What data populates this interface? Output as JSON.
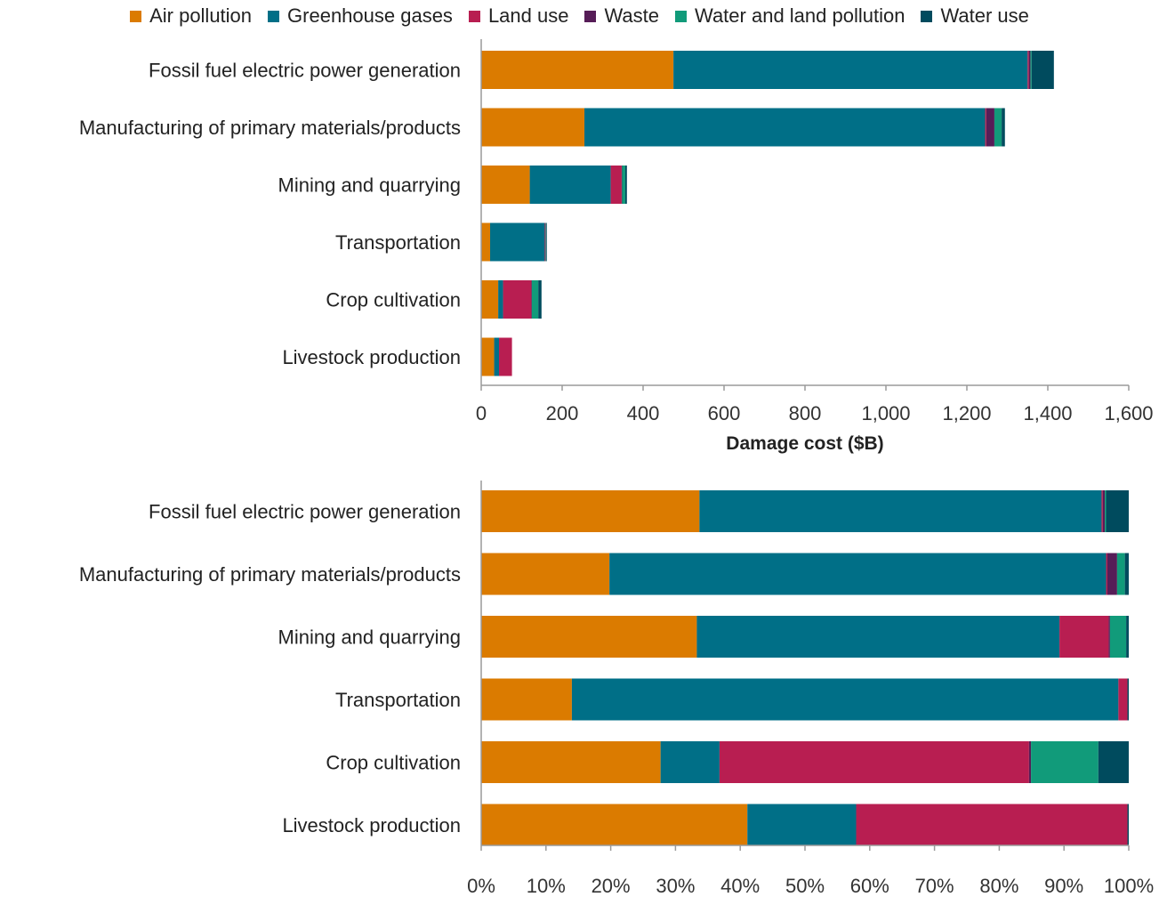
{
  "chart_data": [
    {
      "type": "bar",
      "orientation": "horizontal",
      "stacked": true,
      "categories": [
        "Fossil fuel electric power generation",
        "Manufacturing of primary materials/products",
        "Mining and quarrying",
        "Transportation",
        "Crop cultivation",
        "Livestock production"
      ],
      "series": [
        {
          "name": "Air pollution",
          "color": "#DB7B00",
          "values": [
            475,
            255,
            120,
            22,
            42,
            32
          ]
        },
        {
          "name": "Greenhouse gases",
          "color": "#006F87",
          "values": [
            875,
            990,
            200,
            135,
            12,
            12
          ]
        },
        {
          "name": "Land use",
          "color": "#B81E51",
          "values": [
            3,
            3,
            27,
            2,
            70,
            32
          ]
        },
        {
          "name": "Waste",
          "color": "#561D57",
          "values": [
            4,
            20,
            1,
            0,
            1,
            0
          ]
        },
        {
          "name": "Water and land pollution",
          "color": "#119B7A",
          "values": [
            3,
            18,
            8,
            1,
            16,
            0
          ]
        },
        {
          "name": "Water use",
          "color": "#004B5E",
          "values": [
            55,
            8,
            4,
            2,
            8,
            0
          ]
        }
      ],
      "xlabel": "Damage cost ($B)",
      "xlim": [
        0,
        1600
      ],
      "xticks": [
        "0",
        "200",
        "400",
        "600",
        "800",
        "1,000",
        "1,200",
        "1,400",
        "1,600"
      ],
      "grid": false
    },
    {
      "type": "bar",
      "orientation": "horizontal",
      "stacked": true,
      "normalized": true,
      "categories": [
        "Fossil fuel electric power generation",
        "Manufacturing of primary materials/products",
        "Mining and quarrying",
        "Transportation",
        "Crop cultivation",
        "Livestock production"
      ],
      "series": [
        {
          "name": "Air pollution",
          "color": "#DB7B00",
          "values": [
            33.7,
            19.8,
            33.3,
            14.0,
            27.7,
            41.1
          ]
        },
        {
          "name": "Greenhouse gases",
          "color": "#006F87",
          "values": [
            62.1,
            76.7,
            56.0,
            84.4,
            9.1,
            16.8
          ]
        },
        {
          "name": "Land use",
          "color": "#B81E51",
          "values": [
            0.2,
            0.2,
            7.6,
            1.4,
            47.8,
            41.9
          ]
        },
        {
          "name": "Waste",
          "color": "#561D57",
          "values": [
            0.3,
            1.5,
            0.2,
            0.0,
            0.3,
            0.0
          ]
        },
        {
          "name": "Water and land pollution",
          "color": "#119B7A",
          "values": [
            0.2,
            1.2,
            2.5,
            0.0,
            10.4,
            0.0
          ]
        },
        {
          "name": "Water use",
          "color": "#004B5E",
          "values": [
            3.5,
            0.6,
            0.4,
            0.2,
            4.7,
            0.2
          ]
        }
      ],
      "xlim": [
        0,
        100
      ],
      "xticks": [
        "0%",
        "10%",
        "20%",
        "30%",
        "40%",
        "50%",
        "60%",
        "70%",
        "80%",
        "90%",
        "100%"
      ],
      "grid": false
    }
  ]
}
